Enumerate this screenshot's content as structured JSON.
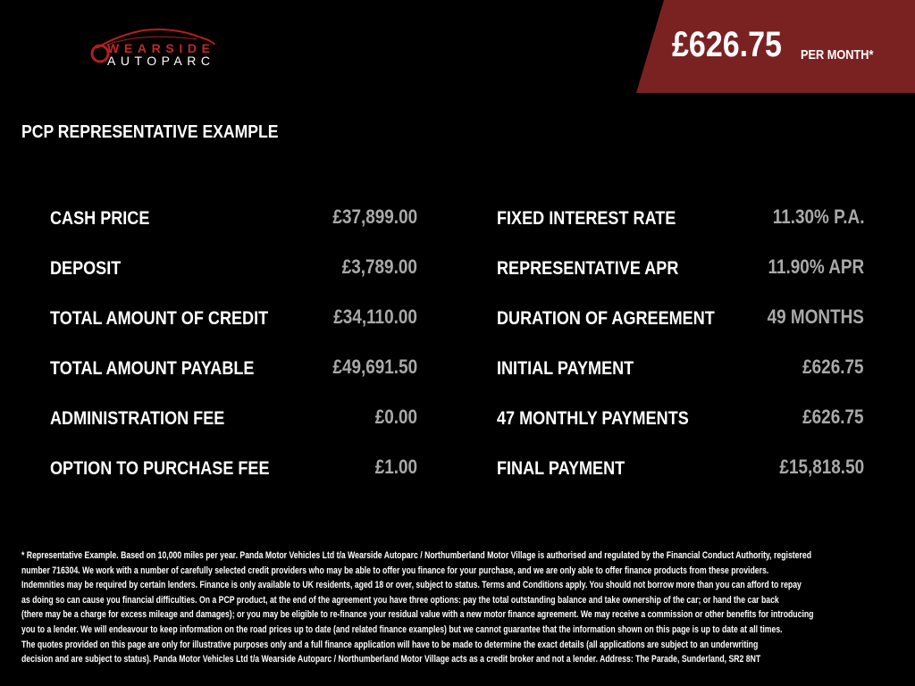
{
  "logo": {
    "line1": "WEARSIDE",
    "line2": "AUTOPARC"
  },
  "banner": {
    "price": "£626.75",
    "suffix": "PER MONTH*",
    "color": "#7a2222"
  },
  "title": "PCP REPRESENTATIVE EXAMPLE",
  "left": [
    {
      "label": "CASH PRICE",
      "value": "£37,899.00"
    },
    {
      "label": "DEPOSIT",
      "value": "£3,789.00"
    },
    {
      "label": "TOTAL AMOUNT OF CREDIT",
      "value": "£34,110.00"
    },
    {
      "label": "TOTAL AMOUNT PAYABLE",
      "value": "£49,691.50"
    },
    {
      "label": "ADMINISTRATION FEE",
      "value": "£0.00"
    },
    {
      "label": "OPTION TO PURCHASE FEE",
      "value": "£1.00"
    }
  ],
  "right": [
    {
      "label": "FIXED INTEREST RATE",
      "value": "11.30% P.A."
    },
    {
      "label": "REPRESENTATIVE APR",
      "value": "11.90% APR"
    },
    {
      "label": "DURATION OF AGREEMENT",
      "value": "49 MONTHS"
    },
    {
      "label": "INITIAL PAYMENT",
      "value": "£626.75"
    },
    {
      "label": "47 MONTHLY PAYMENTS",
      "value": "£626.75"
    },
    {
      "label": "FINAL PAYMENT",
      "value": "£15,818.50"
    }
  ],
  "footer": [
    "* Representative Example. Based on 10,000 miles per year. Panda Motor Vehicles Ltd t/a Wearside Autoparc / Northumberland Motor Village is authorised and regulated by the Financial Conduct Authority, registered",
    "number 716304. We work with a number of carefully selected credit providers who may be able to offer you finance for your purchase, and we are only able to offer finance products from these providers.",
    "Indemnities may be required by certain lenders. Finance is only available to UK residents, aged 18 or over, subject to status. Terms and Conditions apply. You should not borrow more than you can afford to repay",
    "as doing so can cause you financial difficulties. On a PCP product, at the end of the agreement you have three options: pay the total outstanding balance and take ownership of the car; or hand the car back",
    "(there may be a charge for excess mileage and damages); or you may be eligible to re-finance your residual value with a new motor finance agreement. We may receive a commission or other benefits for introducing",
    "you to a lender. We will endeavour to keep information on the road prices up to date (and related finance examples) but we cannot guarantee that the information shown on this page is up to date at all times.",
    "The quotes provided on this page are only for illustrative purposes only and a full finance application will have to be made to determine the exact details (all applications are subject to an underwriting",
    "decision and are subject to status). Panda Motor Vehicles Ltd t/a Wearside Autoparc / Northumberland Motor Village acts as a credit broker and not a lender. Address: The Parade, Sunderland, SR2 8NT"
  ]
}
